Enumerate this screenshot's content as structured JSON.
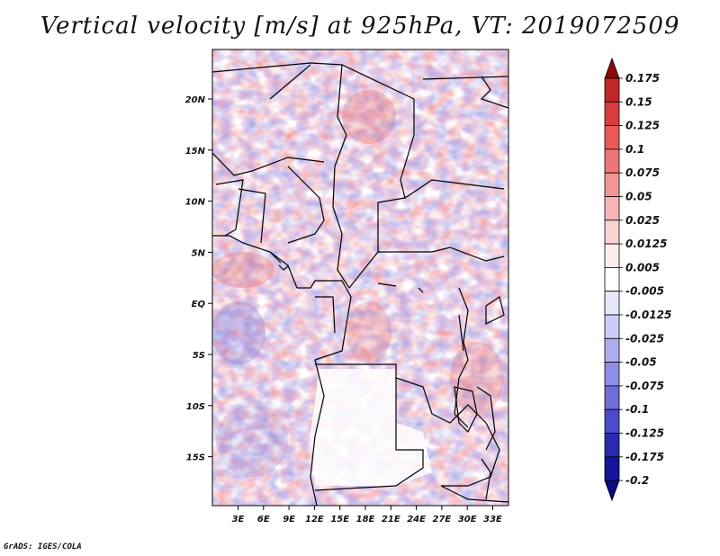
{
  "title": "Vertical velocity [m/s] at 925hPa, VT: 2019072509",
  "credit": "GrADS: IGES/COLA",
  "map": {
    "lat_ticks": [
      "20N",
      "15N",
      "10N",
      "5N",
      "EQ",
      "5S",
      "10S",
      "15S"
    ],
    "lon_ticks": [
      "3E",
      "6E",
      "9E",
      "12E",
      "15E",
      "18E",
      "21E",
      "24E",
      "27E",
      "30E",
      "33E"
    ],
    "variable": "Vertical velocity",
    "units": "m/s",
    "level": "925hPa",
    "valid_time": "2019072509"
  },
  "colorbar": {
    "labels": [
      "0.175",
      "0.15",
      "0.125",
      "0.1",
      "0.075",
      "0.05",
      "0.025",
      "0.0125",
      "0.005",
      "-0.005",
      "-0.0125",
      "-0.025",
      "-0.05",
      "-0.075",
      "-0.1",
      "-0.125",
      "-0.175",
      "-0.2"
    ],
    "colors": [
      "#a01616",
      "#c02828",
      "#d83c3c",
      "#e85a5a",
      "#ee7676",
      "#f29595",
      "#f6b4b4",
      "#f9d2d2",
      "#fcecec",
      "#ffffff",
      "#e6e6fb",
      "#cccdf6",
      "#aeaeee",
      "#8e8ee4",
      "#6e6ed8",
      "#4c4cc8",
      "#2a2ab0",
      "#14149a"
    ],
    "top_arrow_color": "#8c0a0a",
    "bottom_arrow_color": "#0a0a82"
  }
}
